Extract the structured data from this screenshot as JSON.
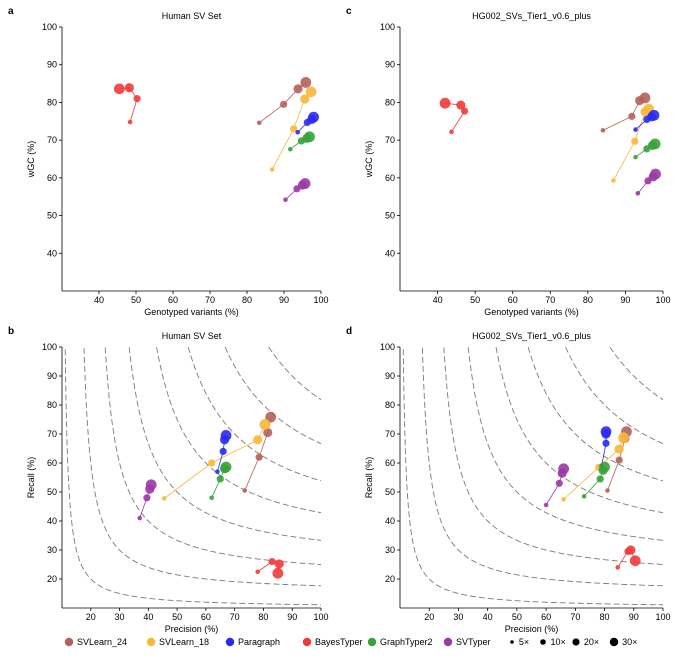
{
  "legend": {
    "tools": [
      {
        "name": "SVLearn_24",
        "color": "#b5615a"
      },
      {
        "name": "SVLearn_18",
        "color": "#f8b83a"
      },
      {
        "name": "Paragraph",
        "color": "#2b2bf0"
      },
      {
        "name": "BayesTyper",
        "color": "#ef3b3b"
      },
      {
        "name": "GraphTyper2",
        "color": "#36a338"
      },
      {
        "name": "SVTyper",
        "color": "#9b38a6"
      }
    ],
    "coverages": [
      {
        "label": "5×",
        "cov": 5
      },
      {
        "label": "10×",
        "cov": 10
      },
      {
        "label": "20×",
        "cov": 20
      },
      {
        "label": "30×",
        "cov": 30
      }
    ]
  },
  "chart_data": [
    {
      "panel": "a",
      "type": "scatter",
      "title": "Human SV Set",
      "xlabel": "Genotyped variants (%)",
      "ylabel": "wGC (%)",
      "xlim": [
        30,
        100
      ],
      "ylim": [
        30,
        100
      ],
      "xticks": [
        40,
        50,
        60,
        70,
        80,
        90,
        100
      ],
      "yticks": [
        40,
        50,
        60,
        70,
        80,
        90,
        100
      ],
      "series": [
        {
          "name": "SVLearn_24",
          "color": "#b5615a",
          "points": [
            {
              "x": 83.3,
              "y": 74.6,
              "cov": 5
            },
            {
              "x": 89.9,
              "y": 79.5,
              "cov": 10
            },
            {
              "x": 93.8,
              "y": 83.6,
              "cov": 20
            },
            {
              "x": 95.9,
              "y": 85.3,
              "cov": 30
            }
          ]
        },
        {
          "name": "SVLearn_18",
          "color": "#f8b83a",
          "points": [
            {
              "x": 86.8,
              "y": 62.2,
              "cov": 5
            },
            {
              "x": 92.6,
              "y": 73.0,
              "cov": 10
            },
            {
              "x": 95.6,
              "y": 80.9,
              "cov": 20
            },
            {
              "x": 97.3,
              "y": 82.8,
              "cov": 30
            }
          ]
        },
        {
          "name": "Paragraph",
          "color": "#2b2bf0",
          "points": [
            {
              "x": 93.7,
              "y": 72.1,
              "cov": 5
            },
            {
              "x": 96.3,
              "y": 74.7,
              "cov": 10
            },
            {
              "x": 97.5,
              "y": 75.5,
              "cov": 20
            },
            {
              "x": 98.0,
              "y": 76.1,
              "cov": 30
            }
          ]
        },
        {
          "name": "BayesTyper",
          "color": "#ef3b3b",
          "points": [
            {
              "x": 48.4,
              "y": 74.8,
              "cov": 5
            },
            {
              "x": 50.3,
              "y": 81.0,
              "cov": 10
            },
            {
              "x": 48.2,
              "y": 83.9,
              "cov": 20
            },
            {
              "x": 45.5,
              "y": 83.6,
              "cov": 30
            }
          ]
        },
        {
          "name": "GraphTyper2",
          "color": "#36a338",
          "points": [
            {
              "x": 91.7,
              "y": 67.6,
              "cov": 5
            },
            {
              "x": 94.7,
              "y": 69.8,
              "cov": 10
            },
            {
              "x": 96.2,
              "y": 70.5,
              "cov": 20
            },
            {
              "x": 96.9,
              "y": 70.9,
              "cov": 30
            }
          ]
        },
        {
          "name": "SVTyper",
          "color": "#9b38a6",
          "points": [
            {
              "x": 90.4,
              "y": 54.2,
              "cov": 5
            },
            {
              "x": 93.5,
              "y": 57.1,
              "cov": 10
            },
            {
              "x": 95.0,
              "y": 58.1,
              "cov": 20
            },
            {
              "x": 95.7,
              "y": 58.5,
              "cov": 30
            }
          ]
        }
      ]
    },
    {
      "panel": "c",
      "type": "scatter",
      "title": "HG002_SVs_Tier1_v0.6_plus",
      "xlabel": "Genotyped variants (%)",
      "ylabel": "wGC (%)",
      "xlim": [
        30,
        100
      ],
      "ylim": [
        30,
        100
      ],
      "xticks": [
        40,
        50,
        60,
        70,
        80,
        90,
        100
      ],
      "yticks": [
        40,
        50,
        60,
        70,
        80,
        90,
        100
      ],
      "series": [
        {
          "name": "SVLearn_24",
          "color": "#b5615a",
          "points": [
            {
              "x": 84.0,
              "y": 72.6,
              "cov": 5
            },
            {
              "x": 91.7,
              "y": 76.3,
              "cov": 10
            },
            {
              "x": 93.8,
              "y": 80.5,
              "cov": 20
            },
            {
              "x": 95.2,
              "y": 81.2,
              "cov": 30
            }
          ]
        },
        {
          "name": "SVLearn_18",
          "color": "#f8b83a",
          "points": [
            {
              "x": 86.8,
              "y": 59.3,
              "cov": 5
            },
            {
              "x": 92.5,
              "y": 69.7,
              "cov": 10
            },
            {
              "x": 95.2,
              "y": 77.5,
              "cov": 20
            },
            {
              "x": 96.2,
              "y": 78.2,
              "cov": 30
            }
          ]
        },
        {
          "name": "Paragraph",
          "color": "#2b2bf0",
          "points": [
            {
              "x": 92.7,
              "y": 72.8,
              "cov": 5
            },
            {
              "x": 95.7,
              "y": 75.5,
              "cov": 10
            },
            {
              "x": 97.0,
              "y": 76.2,
              "cov": 20
            },
            {
              "x": 97.6,
              "y": 76.6,
              "cov": 30
            }
          ]
        },
        {
          "name": "BayesTyper",
          "color": "#ef3b3b",
          "points": [
            {
              "x": 43.7,
              "y": 72.2,
              "cov": 5
            },
            {
              "x": 47.2,
              "y": 77.7,
              "cov": 10
            },
            {
              "x": 46.2,
              "y": 79.3,
              "cov": 20
            },
            {
              "x": 42.0,
              "y": 79.8,
              "cov": 30
            }
          ]
        },
        {
          "name": "GraphTyper2",
          "color": "#36a338",
          "points": [
            {
              "x": 92.7,
              "y": 65.5,
              "cov": 5
            },
            {
              "x": 95.7,
              "y": 67.7,
              "cov": 10
            },
            {
              "x": 97.2,
              "y": 68.6,
              "cov": 20
            },
            {
              "x": 97.9,
              "y": 69.0,
              "cov": 30
            }
          ]
        },
        {
          "name": "SVTyper",
          "color": "#9b38a6",
          "points": [
            {
              "x": 93.3,
              "y": 55.9,
              "cov": 5
            },
            {
              "x": 96.0,
              "y": 59.2,
              "cov": 10
            },
            {
              "x": 97.4,
              "y": 60.3,
              "cov": 20
            },
            {
              "x": 98.0,
              "y": 61.0,
              "cov": 30
            }
          ]
        }
      ]
    },
    {
      "panel": "b",
      "type": "scatter",
      "title": "Human SV Set",
      "xlabel": "Precision (%)",
      "ylabel": "Recall (%)",
      "xlim": [
        10,
        100
      ],
      "ylim": [
        10,
        100
      ],
      "xticks": [
        20,
        30,
        40,
        50,
        60,
        70,
        80,
        90,
        100
      ],
      "yticks": [
        20,
        30,
        40,
        50,
        60,
        70,
        80,
        90,
        100
      ],
      "f1_curves": [
        0.2,
        0.3,
        0.4,
        0.5,
        0.6,
        0.7,
        0.8,
        0.9
      ],
      "series": [
        {
          "name": "SVLearn_24",
          "color": "#b5615a",
          "points": [
            {
              "x": 73.5,
              "y": 50.5,
              "cov": 5
            },
            {
              "x": 78.5,
              "y": 62.0,
              "cov": 10
            },
            {
              "x": 81.5,
              "y": 70.5,
              "cov": 20
            },
            {
              "x": 82.5,
              "y": 75.8,
              "cov": 30
            }
          ]
        },
        {
          "name": "SVLearn_18",
          "color": "#f8b83a",
          "points": [
            {
              "x": 45.5,
              "y": 47.8,
              "cov": 5
            },
            {
              "x": 62.0,
              "y": 60.0,
              "cov": 10
            },
            {
              "x": 78.0,
              "y": 68.0,
              "cov": 20
            },
            {
              "x": 80.5,
              "y": 73.3,
              "cov": 30
            }
          ]
        },
        {
          "name": "Paragraph",
          "color": "#2b2bf0",
          "points": [
            {
              "x": 64.0,
              "y": 57.0,
              "cov": 5
            },
            {
              "x": 66.0,
              "y": 64.0,
              "cov": 10
            },
            {
              "x": 66.5,
              "y": 68.0,
              "cov": 20
            },
            {
              "x": 67.0,
              "y": 69.5,
              "cov": 30
            }
          ]
        },
        {
          "name": "BayesTyper",
          "color": "#ef3b3b",
          "points": [
            {
              "x": 78.0,
              "y": 22.5,
              "cov": 5
            },
            {
              "x": 83.0,
              "y": 26.0,
              "cov": 10
            },
            {
              "x": 85.5,
              "y": 25.2,
              "cov": 20
            },
            {
              "x": 85.0,
              "y": 22.0,
              "cov": 30
            }
          ]
        },
        {
          "name": "GraphTyper2",
          "color": "#36a338",
          "points": [
            {
              "x": 62.0,
              "y": 48.0,
              "cov": 5
            },
            {
              "x": 65.0,
              "y": 54.5,
              "cov": 10
            },
            {
              "x": 66.5,
              "y": 58.0,
              "cov": 20
            },
            {
              "x": 67.0,
              "y": 58.6,
              "cov": 30
            }
          ]
        },
        {
          "name": "SVTyper",
          "color": "#9b38a6",
          "points": [
            {
              "x": 37.0,
              "y": 41.0,
              "cov": 5
            },
            {
              "x": 39.5,
              "y": 48.0,
              "cov": 10
            },
            {
              "x": 40.5,
              "y": 51.0,
              "cov": 20
            },
            {
              "x": 41.0,
              "y": 52.5,
              "cov": 30
            }
          ]
        }
      ]
    },
    {
      "panel": "d",
      "type": "scatter",
      "title": "HG002_SVs_Tier1_v0.6_plus",
      "xlabel": "Precision (%)",
      "ylabel": "Recall (%)",
      "xlim": [
        10,
        100
      ],
      "ylim": [
        10,
        100
      ],
      "xticks": [
        20,
        30,
        40,
        50,
        60,
        70,
        80,
        90,
        100
      ],
      "yticks": [
        20,
        30,
        40,
        50,
        60,
        70,
        80,
        90,
        100
      ],
      "f1_curves": [
        0.2,
        0.3,
        0.4,
        0.5,
        0.6,
        0.7,
        0.8,
        0.9
      ],
      "series": [
        {
          "name": "SVLearn_24",
          "color": "#b5615a",
          "points": [
            {
              "x": 81.0,
              "y": 50.5,
              "cov": 5
            },
            {
              "x": 85.0,
              "y": 61.0,
              "cov": 10
            },
            {
              "x": 87.0,
              "y": 68.5,
              "cov": 20
            },
            {
              "x": 87.5,
              "y": 70.8,
              "cov": 30
            }
          ]
        },
        {
          "name": "SVLearn_18",
          "color": "#f8b83a",
          "points": [
            {
              "x": 66.0,
              "y": 47.5,
              "cov": 5
            },
            {
              "x": 78.0,
              "y": 58.5,
              "cov": 10
            },
            {
              "x": 85.0,
              "y": 64.8,
              "cov": 20
            },
            {
              "x": 86.5,
              "y": 68.7,
              "cov": 30
            }
          ]
        },
        {
          "name": "Paragraph",
          "color": "#2b2bf0",
          "points": [
            {
              "x": 79.0,
              "y": 59.0,
              "cov": 5
            },
            {
              "x": 80.5,
              "y": 66.8,
              "cov": 10
            },
            {
              "x": 80.5,
              "y": 70.0,
              "cov": 20
            },
            {
              "x": 80.5,
              "y": 70.8,
              "cov": 30
            }
          ]
        },
        {
          "name": "BayesTyper",
          "color": "#ef3b3b",
          "points": [
            {
              "x": 84.5,
              "y": 24.0,
              "cov": 5
            },
            {
              "x": 88.0,
              "y": 29.5,
              "cov": 10
            },
            {
              "x": 89.0,
              "y": 30.0,
              "cov": 20
            },
            {
              "x": 90.5,
              "y": 26.3,
              "cov": 30
            }
          ]
        },
        {
          "name": "GraphTyper2",
          "color": "#36a338",
          "points": [
            {
              "x": 73.0,
              "y": 48.5,
              "cov": 5
            },
            {
              "x": 78.5,
              "y": 54.5,
              "cov": 10
            },
            {
              "x": 79.5,
              "y": 57.5,
              "cov": 20
            },
            {
              "x": 80.0,
              "y": 58.6,
              "cov": 30
            }
          ]
        },
        {
          "name": "SVTyper",
          "color": "#9b38a6",
          "points": [
            {
              "x": 60.0,
              "y": 45.5,
              "cov": 5
            },
            {
              "x": 64.5,
              "y": 53.0,
              "cov": 10
            },
            {
              "x": 65.5,
              "y": 56.5,
              "cov": 20
            },
            {
              "x": 66.0,
              "y": 58.0,
              "cov": 30
            }
          ]
        }
      ]
    }
  ]
}
